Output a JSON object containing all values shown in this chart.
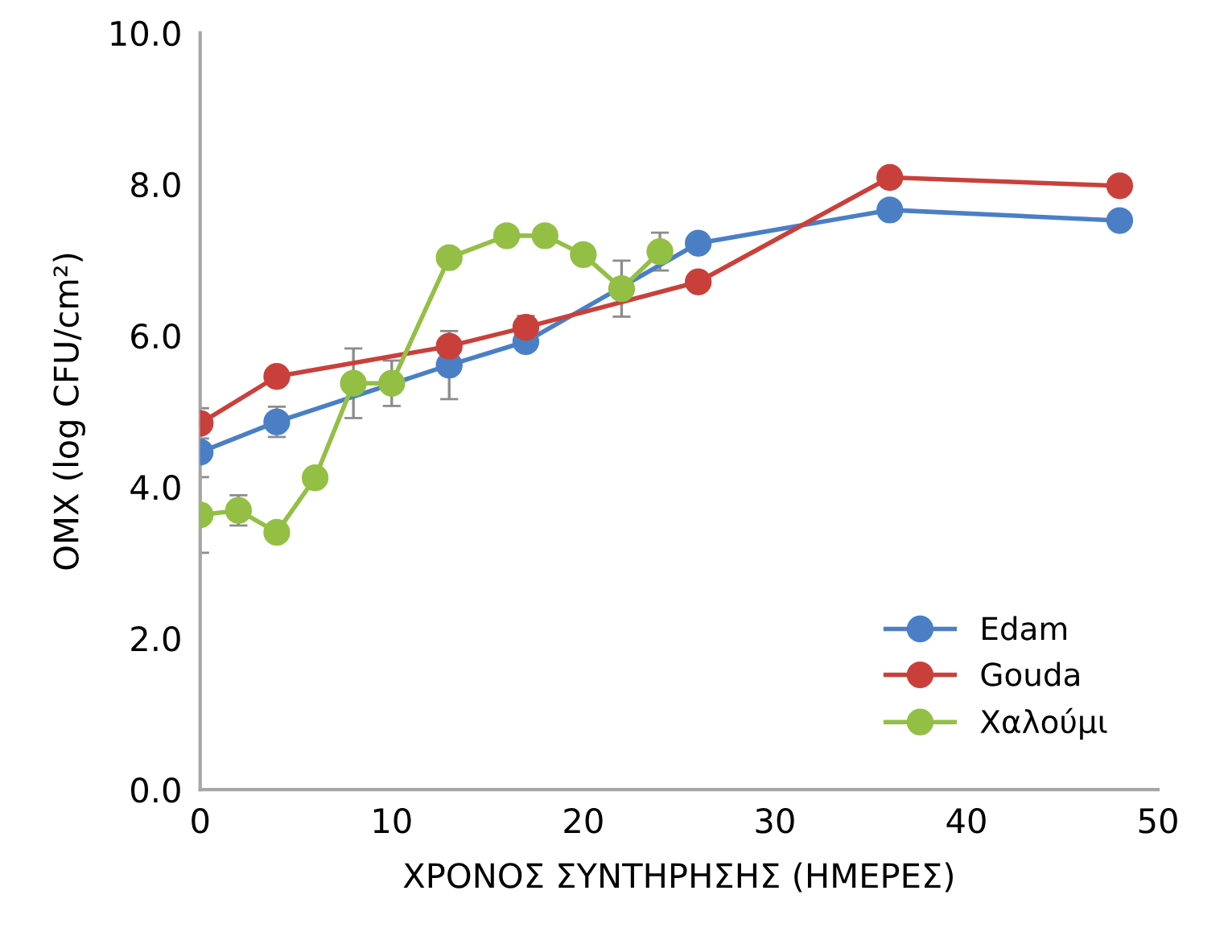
{
  "chart_data": {
    "type": "line",
    "xlabel": "ΧΡΟΝΟΣ ΣΥΝΤΗΡΗΣΗΣ (ΗΜΕΡΕΣ)",
    "ylabel": "ΟΜΧ (log CFU/cm²)",
    "xlim": [
      0,
      50
    ],
    "xticks": [
      0,
      10,
      20,
      30,
      40,
      50
    ],
    "ylim": [
      0,
      10
    ],
    "yticks": [
      {
        "value": 0,
        "label": "0.0"
      },
      {
        "value": 2,
        "label": "2.0"
      },
      {
        "value": 4,
        "label": "4.0"
      },
      {
        "value": 6,
        "label": "6.0"
      },
      {
        "value": 8,
        "label": "8.0"
      },
      {
        "value": 10,
        "label": "10.0"
      }
    ],
    "grid": false,
    "legend": "bottom right",
    "marker": "circle",
    "line_style": "solid",
    "series": [
      {
        "name": "Edam",
        "color": "#4a7fc6",
        "x": [
          0,
          4,
          13,
          17,
          26,
          36,
          48
        ],
        "values": [
          4.46,
          4.86,
          5.61,
          5.92,
          7.22,
          7.66,
          7.52
        ],
        "errors": [
          null,
          0.2,
          0.45,
          null,
          null,
          null,
          null
        ]
      },
      {
        "name": "Gouda",
        "color": "#c9403b",
        "x": [
          0,
          4,
          13,
          17,
          26,
          36,
          48
        ],
        "values": [
          4.84,
          5.46,
          5.86,
          6.11,
          6.71,
          8.09,
          7.98
        ],
        "errors": [
          0.2,
          null,
          null,
          0.15,
          null,
          null,
          null
        ]
      },
      {
        "name": "Χαλούμι",
        "color": "#93bf45",
        "x": [
          0,
          2,
          4,
          6,
          8,
          10,
          13,
          16,
          18,
          20,
          22,
          24
        ],
        "values": [
          3.63,
          3.69,
          3.4,
          4.12,
          5.37,
          5.37,
          7.03,
          7.32,
          7.32,
          7.07,
          6.62,
          7.11
        ],
        "errors": [
          0.5,
          0.2,
          null,
          null,
          0.46,
          0.3,
          null,
          null,
          null,
          null,
          0.37,
          0.25
        ]
      }
    ]
  }
}
